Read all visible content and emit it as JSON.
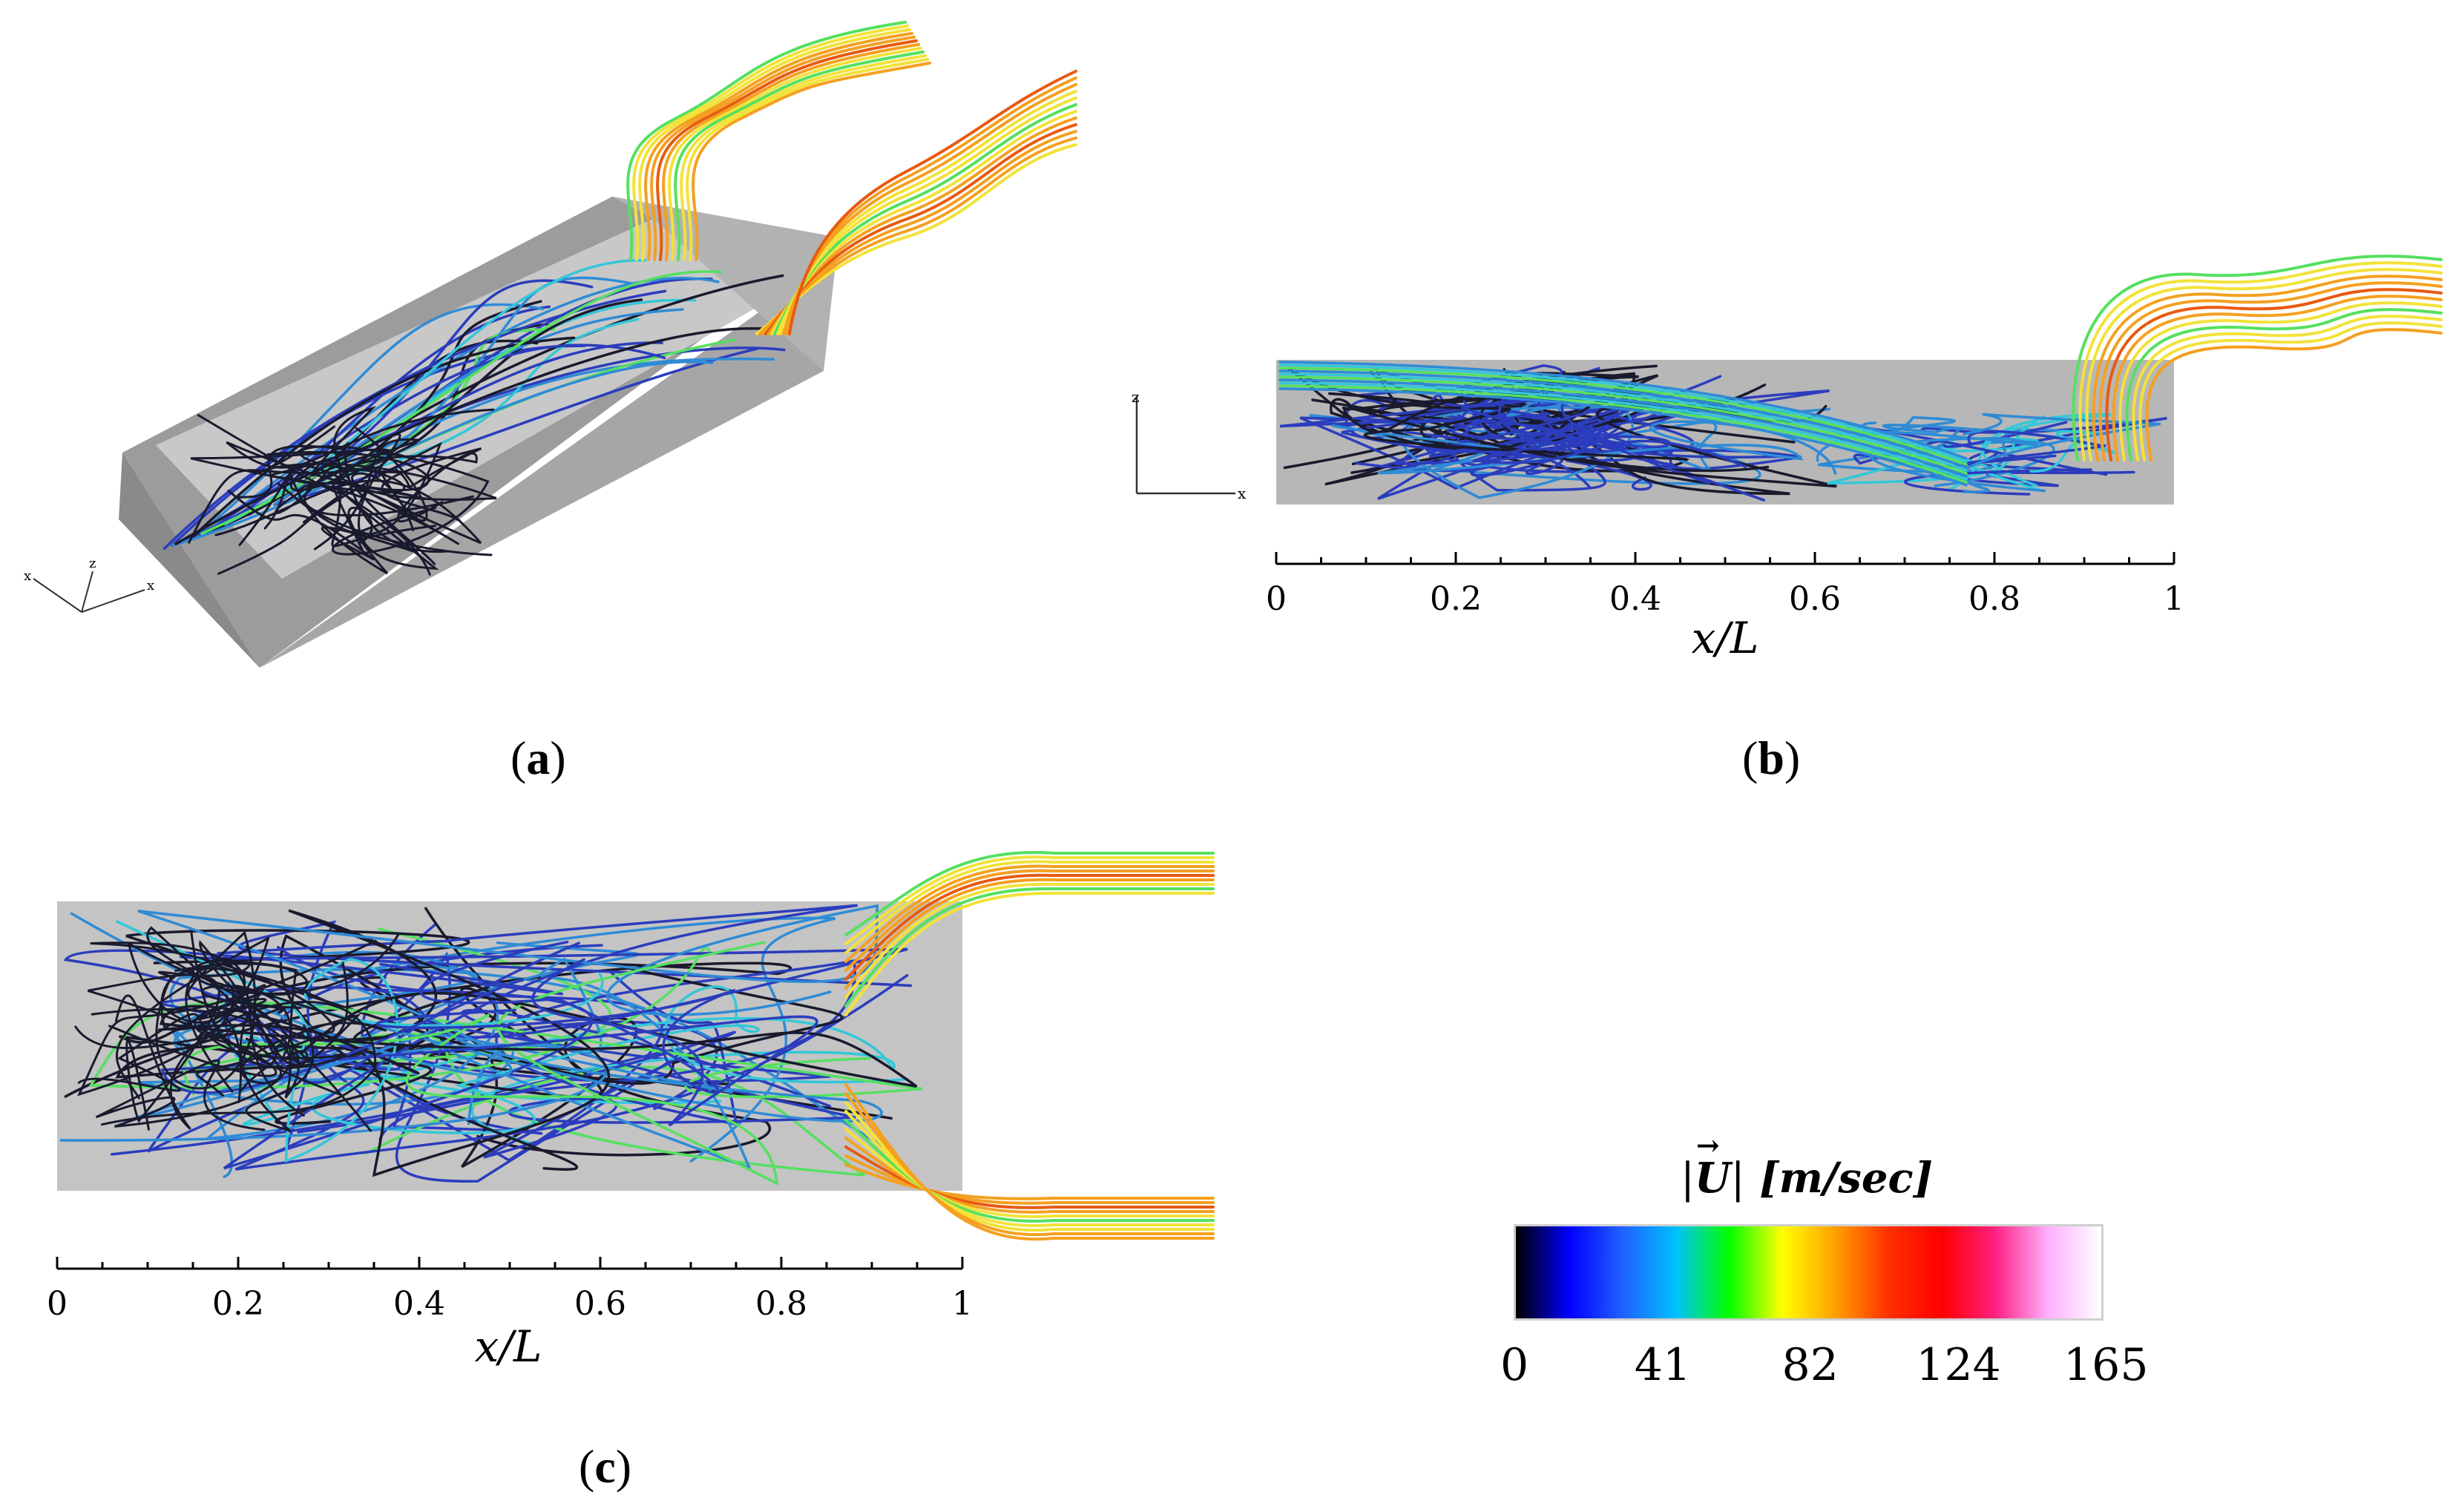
{
  "panels": {
    "a": {
      "caption_letter": "a",
      "axes_triad_labels": [
        "x",
        "z",
        "x"
      ]
    },
    "b": {
      "caption_letter": "b",
      "triad_labels": {
        "vertical": "z",
        "horizontal": "x"
      },
      "axis": {
        "label": "x/L",
        "ticks": [
          "0",
          "0.2",
          "0.4",
          "0.6",
          "0.8",
          "1"
        ]
      }
    },
    "c": {
      "caption_letter": "c",
      "axis": {
        "label": "x/L",
        "ticks": [
          "0",
          "0.2",
          "0.4",
          "0.6",
          "0.8",
          "1"
        ]
      }
    }
  },
  "colorbar": {
    "title_symbol": "U",
    "title_unit": "[m/sec]",
    "ticks": [
      "0",
      "41",
      "82",
      "124",
      "165"
    ],
    "stops": [
      "#000000",
      "#0000ff",
      "#2060ff",
      "#00c0ff",
      "#00ff00",
      "#ffff00",
      "#ffa000",
      "#ff3000",
      "#ff0000",
      "#ff2080",
      "#ffb0ff",
      "#ffffff"
    ]
  },
  "streamline_colors": {
    "slow": "#1a1a2e",
    "low": "#2b3dbd",
    "mid": "#2e8bd6",
    "cyan": "#33c7d9",
    "green": "#55e060",
    "yellow": "#f2e23a",
    "orange": "#f4a020",
    "red": "#e85a10"
  }
}
